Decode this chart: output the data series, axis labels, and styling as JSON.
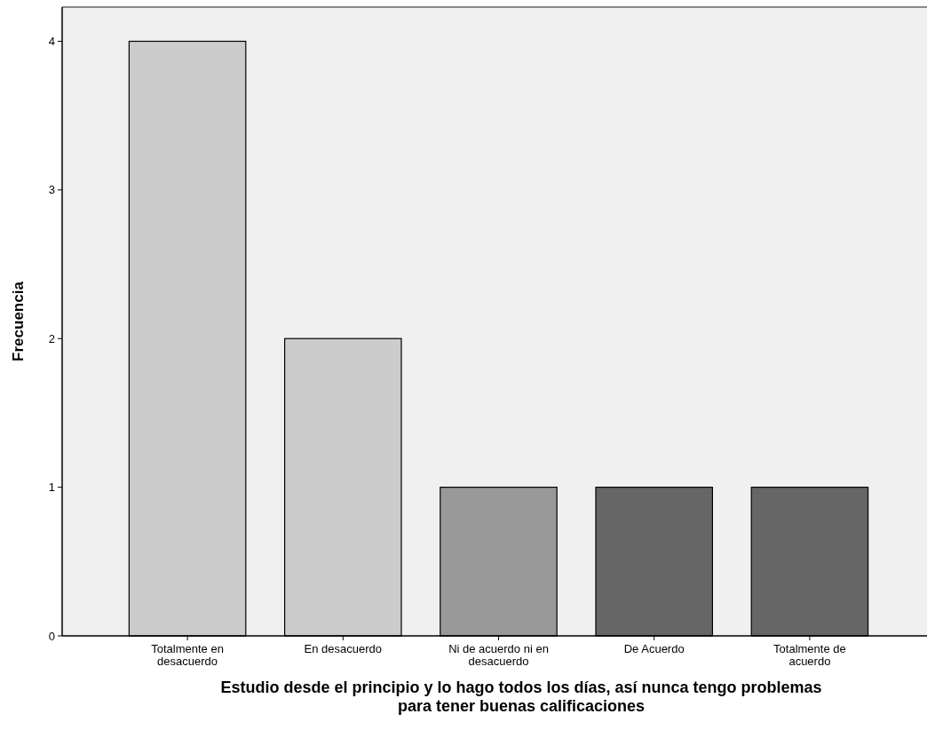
{
  "chart_data": {
    "type": "bar",
    "xlabel": "Estudio desde el principio y lo hago todos los días, así nunca tengo problemas para tener buenas calificaciones",
    "ylabel": "Frecuencia",
    "categories": [
      "Totalmente en desacuerdo",
      "En desacuerdo",
      "Ni de acuerdo ni en desacuerdo",
      "De Acuerdo",
      "Totalmente de acuerdo"
    ],
    "values": [
      4,
      2,
      1,
      1,
      1
    ],
    "colors": [
      "#cccccc",
      "#cccccc",
      "#999999",
      "#666666",
      "#666666"
    ],
    "ylim": [
      0,
      4.23
    ],
    "yticks": [
      0,
      1,
      2,
      3,
      4
    ],
    "grid": false
  }
}
